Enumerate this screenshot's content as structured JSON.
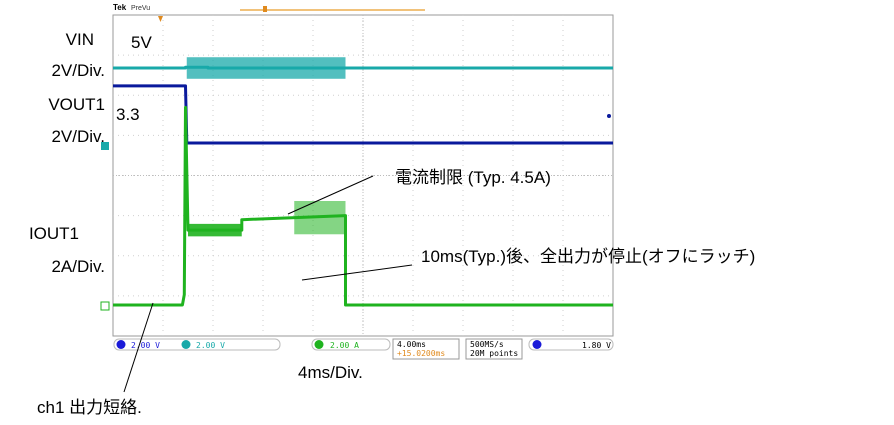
{
  "screen": {
    "brand": "Tek",
    "mode": "PreVu"
  },
  "chart_data": {
    "type": "line",
    "x_unit": "ms",
    "xlim": [
      0,
      40
    ],
    "grid": true,
    "series": [
      {
        "name": "VIN",
        "color": "#18a9a9",
        "points": [
          [
            0,
            5
          ],
          [
            5.8,
            5
          ],
          [
            5.8,
            5.05
          ],
          [
            7.6,
            5.05
          ],
          [
            7.6,
            5
          ],
          [
            18.6,
            5
          ],
          [
            18.6,
            5
          ],
          [
            40,
            5
          ]
        ]
      },
      {
        "name": "VOUT1",
        "color": "#0a1a9c",
        "points": [
          [
            0,
            3.3
          ],
          [
            5.8,
            3.3
          ],
          [
            5.9,
            0
          ],
          [
            6.3,
            0
          ],
          [
            6.4,
            0
          ],
          [
            40,
            0
          ]
        ]
      },
      {
        "name": "IOUT1",
        "color": "#1fb31f",
        "points": [
          [
            0,
            0
          ],
          [
            5.55,
            0
          ],
          [
            5.7,
            0.5
          ],
          [
            5.8,
            9.5
          ],
          [
            6.0,
            3.6
          ],
          [
            10.3,
            3.6
          ],
          [
            10.3,
            4.1
          ],
          [
            18.6,
            4.3
          ],
          [
            18.6,
            0
          ],
          [
            40,
            0
          ]
        ]
      }
    ]
  },
  "annotations": {
    "vin_name": "VIN",
    "vin_scale": "2V/Div.",
    "vin_value": "5V",
    "vout_name": "VOUT1",
    "vout_scale": "2V/Div.",
    "vout_value": "3.3",
    "iout_name": "IOUT1",
    "iout_scale": "2A/Div.",
    "current_limit": "電流制限 (Typ. 4.5A)",
    "latch": "10ms(Typ.)後、全出力が停止(オフにラッチ)",
    "short": "ch1 出力短絡.",
    "timebase": "4ms/Div."
  },
  "status_bar": {
    "ch1": "2.00 V",
    "ch2": "2.00 V",
    "ch4": "2.00 A",
    "time": "4.00ms",
    "trig_pos": "+15.0200ms",
    "rate": "500MS/s",
    "points": "20M points",
    "trig_level": "1.80 V"
  }
}
